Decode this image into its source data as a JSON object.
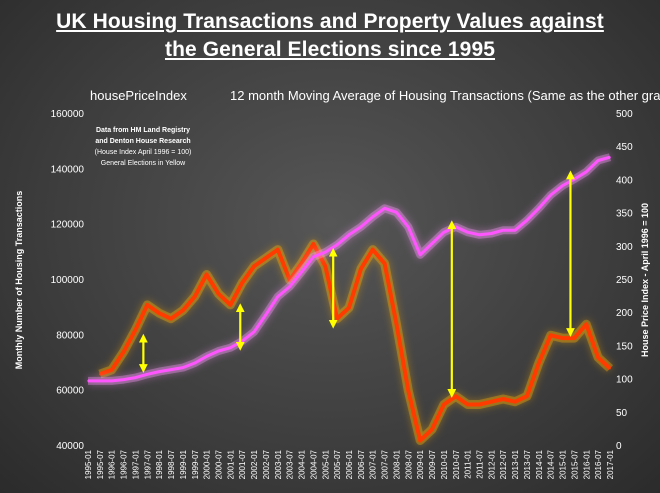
{
  "title_line1": "UK Housing Transactions and Property Values against",
  "title_line2": "the General Elections since 1995",
  "chart_data": {
    "type": "line",
    "legend": [
      "housePriceIndex",
      "12 month Moving Average of Housing Transactions (Same as the other graph)"
    ],
    "ylabel_left": "Monthly Number of Housing Transactions",
    "ylabel_right": "House Price Index - April 1996 = 100",
    "ylim_left": [
      40000,
      160000
    ],
    "yticks_left": [
      "40000",
      "60000",
      "80000",
      "100000",
      "120000",
      "140000",
      "160000"
    ],
    "ylim_right": [
      0,
      500
    ],
    "yticks_right": [
      "0",
      "50",
      "100",
      "150",
      "200",
      "250",
      "300",
      "350",
      "400",
      "450",
      "500"
    ],
    "x_ticks": [
      "1995-01",
      "1995-07",
      "1996-01",
      "1996-07",
      "1997-01",
      "1997-07",
      "1998-01",
      "1998-07",
      "1999-01",
      "1999-07",
      "2000-01",
      "2000-07",
      "2001-01",
      "2001-07",
      "2002-01",
      "2002-07",
      "2003-01",
      "2003-07",
      "2004-01",
      "2004-07",
      "2005-01",
      "2005-07",
      "2006-01",
      "2006-07",
      "2007-01",
      "2007-07",
      "2008-01",
      "2008-07",
      "2009-01",
      "2009-07",
      "2010-01",
      "2010-07",
      "2011-01",
      "2011-07",
      "2012-01",
      "2012-07",
      "2013-01",
      "2013-07",
      "2014-01",
      "2014-07",
      "2015-01",
      "2015-07",
      "2016-01",
      "2016-07",
      "2017-01"
    ],
    "note_lines": [
      "Data from HM Land Registry",
      "and Denton House Research",
      "(House Index April 1996 = 100)",
      "General Elections in Yellow"
    ],
    "series": [
      {
        "name": "housePriceIndex",
        "axis": "right",
        "color": "#ff55ff",
        "x": [
          "1995-01",
          "1995-07",
          "1996-01",
          "1996-07",
          "1997-01",
          "1997-07",
          "1998-01",
          "1998-07",
          "1999-01",
          "1999-07",
          "2000-01",
          "2000-07",
          "2001-01",
          "2001-07",
          "2002-01",
          "2002-07",
          "2003-01",
          "2003-07",
          "2004-01",
          "2004-07",
          "2005-01",
          "2005-07",
          "2006-01",
          "2006-07",
          "2007-01",
          "2007-07",
          "2008-01",
          "2008-07",
          "2009-01",
          "2009-07",
          "2010-01",
          "2010-07",
          "2011-01",
          "2011-07",
          "2012-01",
          "2012-07",
          "2013-01",
          "2013-07",
          "2014-01",
          "2014-07",
          "2015-01",
          "2015-07",
          "2016-01",
          "2016-07",
          "2017-01"
        ],
        "values": [
          98,
          98,
          98,
          100,
          103,
          108,
          112,
          115,
          118,
          125,
          135,
          143,
          148,
          158,
          172,
          198,
          225,
          240,
          262,
          285,
          292,
          303,
          318,
          330,
          345,
          358,
          352,
          330,
          288,
          305,
          322,
          330,
          322,
          318,
          320,
          325,
          325,
          340,
          358,
          378,
          392,
          402,
          413,
          430,
          435
        ]
      },
      {
        "name": "12 month Moving Average of Housing Transactions (Same as the other graph)",
        "axis": "left",
        "color": "#ff3b00",
        "x": [
          "1995-07",
          "1996-01",
          "1996-07",
          "1997-01",
          "1997-07",
          "1998-01",
          "1998-07",
          "1999-01",
          "1999-07",
          "2000-01",
          "2000-07",
          "2001-01",
          "2001-07",
          "2002-01",
          "2002-07",
          "2003-01",
          "2003-07",
          "2004-01",
          "2004-07",
          "2005-01",
          "2005-07",
          "2006-01",
          "2006-07",
          "2007-01",
          "2007-07",
          "2008-01",
          "2008-07",
          "2009-01",
          "2009-07",
          "2010-01",
          "2010-07",
          "2011-01",
          "2011-07",
          "2012-01",
          "2012-07",
          "2013-01",
          "2013-07",
          "2014-01",
          "2014-07",
          "2015-01",
          "2015-07",
          "2016-01",
          "2016-07",
          "2017-01"
        ],
        "values": [
          66000,
          67500,
          74000,
          82000,
          91000,
          88000,
          86000,
          89000,
          94000,
          102000,
          95000,
          91000,
          99000,
          105000,
          108000,
          111000,
          100000,
          106000,
          113000,
          105000,
          86000,
          90000,
          104000,
          111000,
          106000,
          84000,
          60000,
          42000,
          46000,
          55000,
          58000,
          55000,
          55000,
          56000,
          57000,
          56000,
          58000,
          70000,
          80000,
          79000,
          79000,
          84000,
          72000,
          68000
        ]
      }
    ],
    "election_arrows": [
      {
        "x": "1997-05",
        "from": 68000,
        "to": 79000
      },
      {
        "x": "2001-06",
        "from": 76000,
        "to": 90000
      },
      {
        "x": "2005-05",
        "from": 84000,
        "to": 110000
      },
      {
        "x": "2010-05",
        "from": 59000,
        "to": 120000
      },
      {
        "x": "2015-05",
        "from": 81000,
        "to": 138000
      }
    ]
  }
}
